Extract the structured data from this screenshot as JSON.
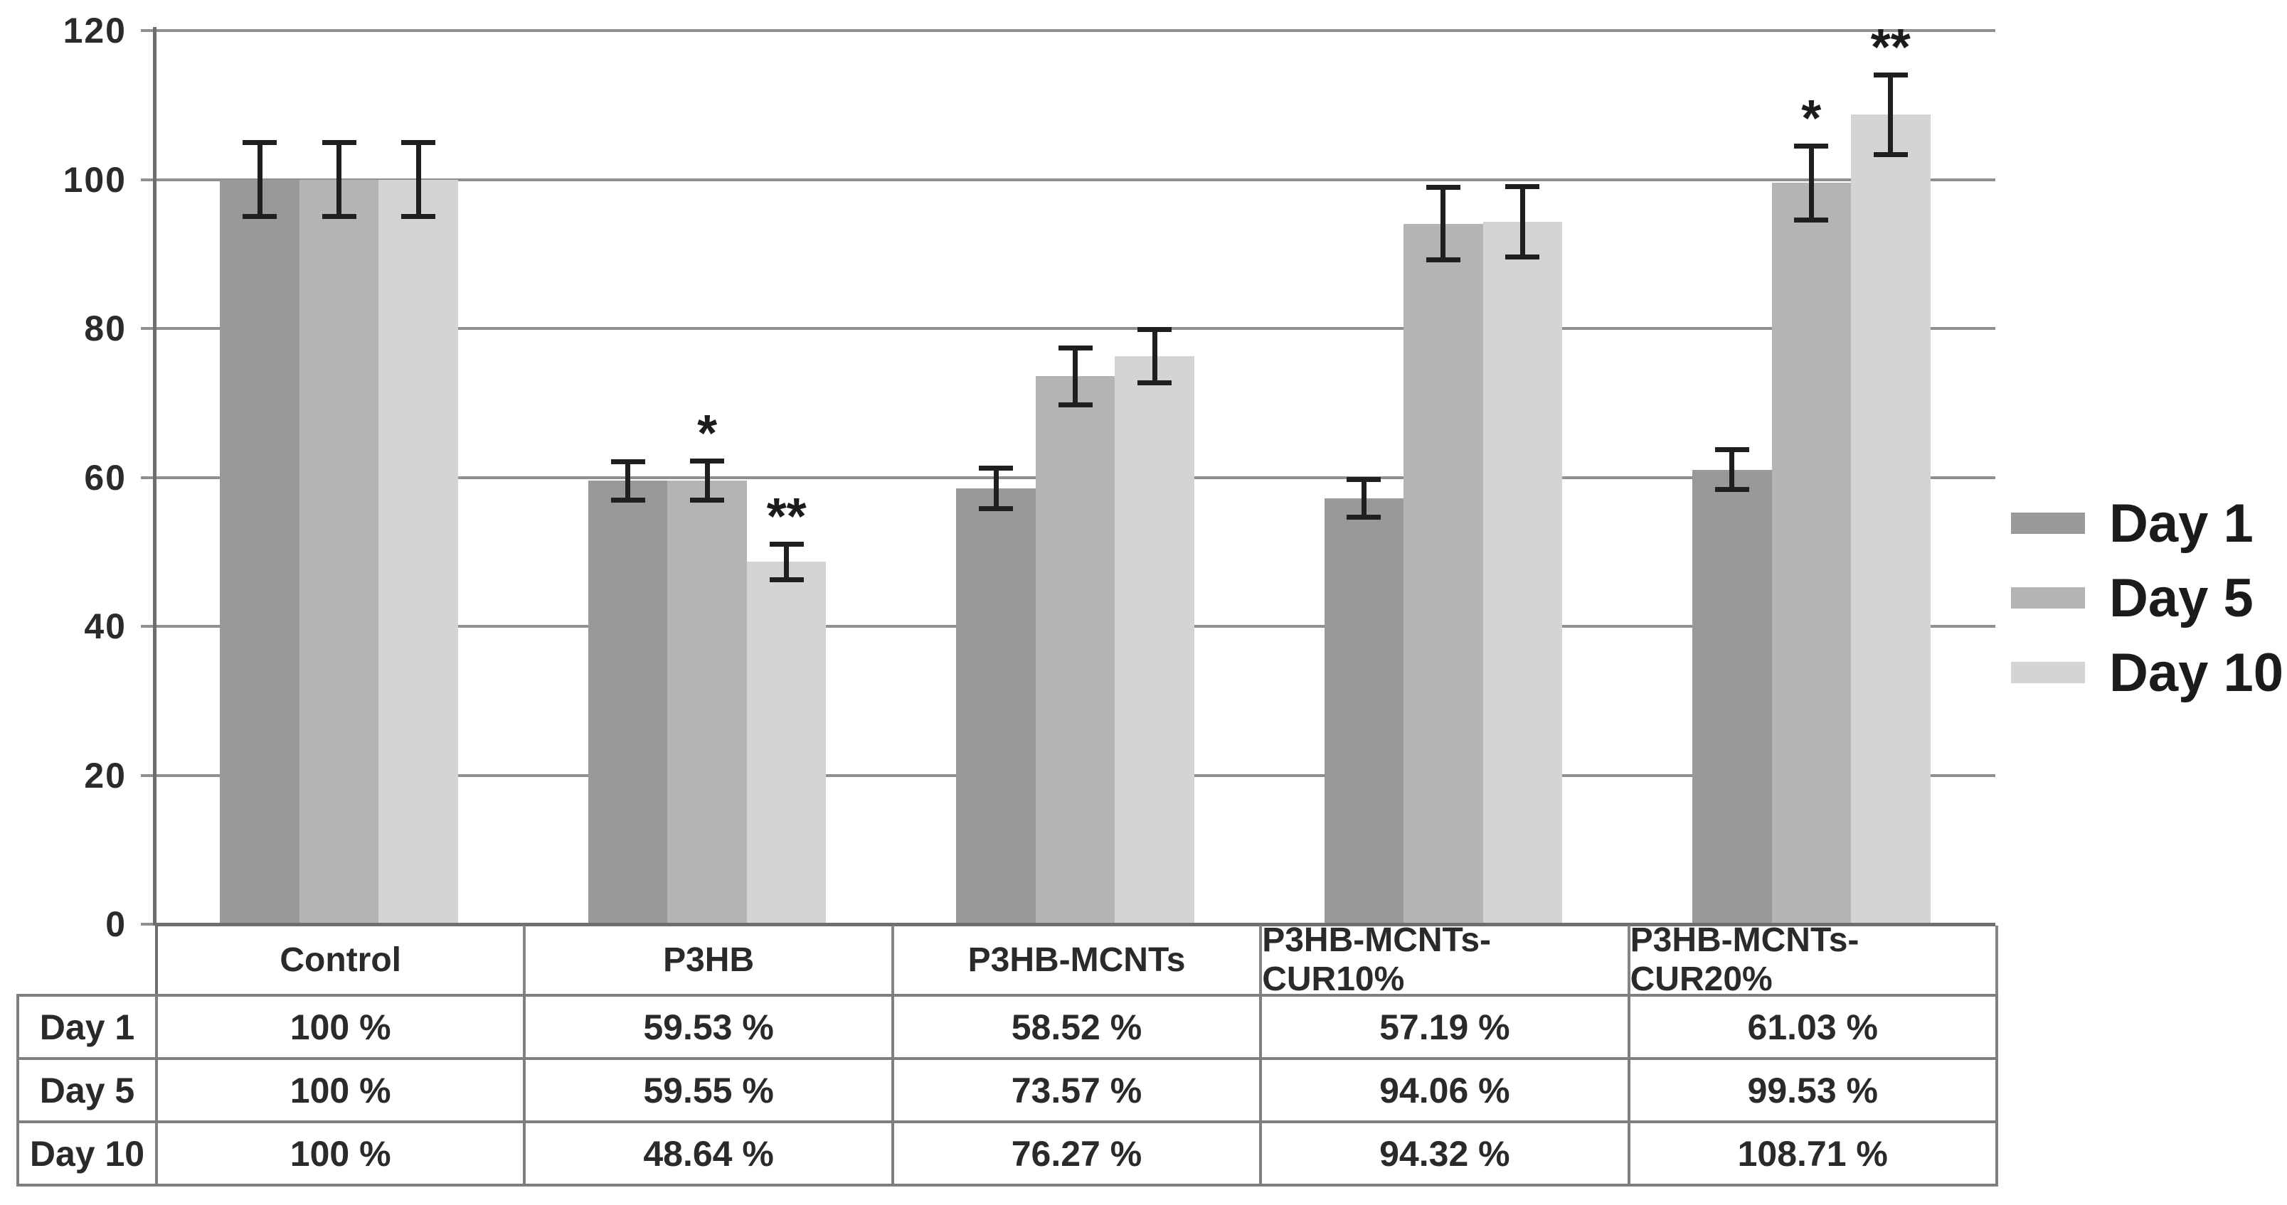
{
  "chart_data": {
    "type": "bar",
    "title": "",
    "xlabel": "",
    "ylabel": "",
    "categories": [
      "Control",
      "P3HB",
      "P3HB-MCNTs",
      "P3HB-MCNTs-CUR10%",
      "P3HB-MCNTs-CUR20%"
    ],
    "series": [
      {
        "name": "Day 1",
        "color": "#999999",
        "values": [
          100,
          59.53,
          58.52,
          57.19,
          61.03
        ],
        "errors": [
          5,
          2.6,
          2.8,
          2.6,
          2.7
        ],
        "significance": [
          "",
          "",
          "",
          "",
          ""
        ]
      },
      {
        "name": "Day 5",
        "color": "#b4b4b4",
        "values": [
          100,
          59.55,
          73.57,
          94.06,
          99.53
        ],
        "errors": [
          5,
          2.7,
          3.9,
          4.9,
          5.0
        ],
        "significance": [
          "",
          "*",
          "",
          "",
          "*"
        ]
      },
      {
        "name": "Day 10",
        "color": "#d4d4d4",
        "values": [
          100,
          48.64,
          76.27,
          94.32,
          108.71
        ],
        "errors": [
          5,
          2.4,
          3.6,
          4.8,
          5.4
        ],
        "significance": [
          "",
          "**",
          "",
          "",
          "**"
        ]
      }
    ],
    "ylim": [
      0,
      120
    ],
    "yticks": [
      0,
      20,
      40,
      60,
      80,
      100,
      120
    ],
    "grid": true,
    "legend_position": "right",
    "legend_labels": [
      "Day 1",
      "Day 5",
      "Day 10"
    ],
    "table": {
      "row_headers": [
        "Day 1",
        "Day 5",
        "Day 10"
      ],
      "column_headers": [
        "Control",
        "P3HB",
        "P3HB-MCNTs",
        "P3HB-MCNTs-CUR10%",
        "P3HB-MCNTs-CUR20%"
      ],
      "cells": [
        [
          "100 %",
          "59.53 %",
          "58.52 %",
          "57.19 %",
          "61.03 %"
        ],
        [
          "100 %",
          "59.55 %",
          "73.57 %",
          "94.06 %",
          "99.53 %"
        ],
        [
          "100 %",
          "48.64 %",
          "76.27 %",
          "94.32 %",
          "108.71 %"
        ]
      ]
    },
    "colors": {
      "grid": "#8f8f8f",
      "zero_line": "#6f6f6f",
      "axis": "#6e6e6e",
      "error_bar": "#1f1f1f",
      "text": "#2a2a2a",
      "table_border": "#7f7f7f"
    }
  }
}
